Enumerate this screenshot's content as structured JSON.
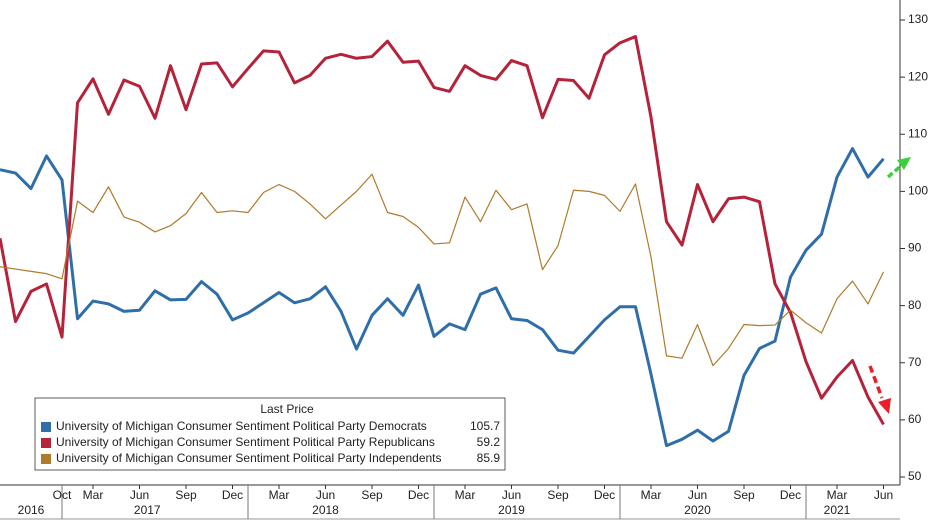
{
  "chart_data": {
    "type": "line",
    "categories": [
      null,
      null,
      null,
      null,
      "Oct",
      null,
      "Mar",
      null,
      null,
      "Jun",
      null,
      null,
      "Sep",
      null,
      null,
      "Dec",
      null,
      null,
      "Mar",
      null,
      null,
      "Jun",
      null,
      null,
      "Sep",
      null,
      null,
      "Dec",
      null,
      null,
      "Mar",
      null,
      null,
      "Jun",
      null,
      null,
      "Sep",
      null,
      null,
      "Dec",
      null,
      null,
      "Mar",
      null,
      null,
      "Jun",
      null,
      null,
      "Sep",
      null,
      null,
      "Dec",
      null,
      null,
      "Mar",
      null,
      null,
      "Jun"
    ],
    "x_groups": [
      "2016",
      "2017",
      "2018",
      "2019",
      "2020",
      "2021"
    ],
    "legend_title": "Last Price",
    "series": [
      {
        "name": "University of Michigan Consumer Sentiment Political Party Democrats",
        "color": "#2f6ea8",
        "width": 3,
        "values": [
          103.8,
          103.2,
          100.5,
          106.2,
          102,
          77.7,
          80.8,
          80.3,
          79,
          79.2,
          82.6,
          81,
          81.1,
          84.2,
          82,
          77.5,
          78.7,
          80.5,
          82.3,
          80.5,
          81.2,
          83.3,
          79,
          72.4,
          78.3,
          81.2,
          78.3,
          83.6,
          74.6,
          76.8,
          75.8,
          82,
          83.1,
          77.7,
          77.4,
          75.8,
          72.2,
          71.7,
          74.6,
          77.5,
          79.8,
          79.8,
          68,
          55.5,
          56.6,
          58.2,
          56.3,
          58,
          67.8,
          72.5,
          73.8,
          85,
          89.7,
          92.5,
          102.5,
          107.5,
          102.5,
          105.7
        ]
      },
      {
        "name": "University of Michigan Consumer Sentiment Political Party Republicans",
        "color": "#b5223a",
        "width": 3,
        "values": [
          91.8,
          77.2,
          82.5,
          83.8,
          74.5,
          115.5,
          119.7,
          113.5,
          119.5,
          118.4,
          112.8,
          122,
          114.3,
          122.3,
          122.5,
          118.3,
          121.5,
          124.6,
          124.4,
          119,
          120.3,
          123.3,
          124,
          123.3,
          123.6,
          126.3,
          122.6,
          122.8,
          118.2,
          117.5,
          122,
          120.3,
          119.6,
          122.9,
          122,
          112.9,
          119.6,
          119.4,
          116.3,
          123.9,
          126,
          127.1,
          113,
          94.7,
          90.6,
          101.2,
          94.7,
          98.7,
          99,
          98.2,
          83.8,
          78.8,
          70.2,
          63.8,
          67.5,
          70.4,
          64,
          59.2
        ]
      },
      {
        "name": "University of Michigan Consumer Sentiment Political Party Independents",
        "color": "#b07a2a",
        "width": 1.2,
        "values": [
          86.8,
          86.4,
          86,
          85.6,
          84.7,
          98.3,
          96.3,
          100.8,
          95.5,
          94.6,
          92.9,
          94,
          96.1,
          99.8,
          96.3,
          96.6,
          96.3,
          99.8,
          101.2,
          100,
          97.8,
          95.2,
          97.6,
          100,
          103,
          96.3,
          95.6,
          93.7,
          90.8,
          91,
          99,
          94.7,
          100.2,
          96.8,
          97.8,
          86.3,
          90.5,
          100.2,
          100,
          99.3,
          96.5,
          101.3,
          88.5,
          71.2,
          70.8,
          76.7,
          69.5,
          72.5,
          76.7,
          76.5,
          76.6,
          79.2,
          77,
          75.2,
          81.2,
          84.3,
          80.3,
          85.9
        ]
      }
    ],
    "ylim": [
      50,
      130
    ],
    "yticks": [
      50,
      60,
      70,
      80,
      90,
      100,
      110,
      120,
      130
    ],
    "y_axis_side": "right",
    "grid": false
  }
}
